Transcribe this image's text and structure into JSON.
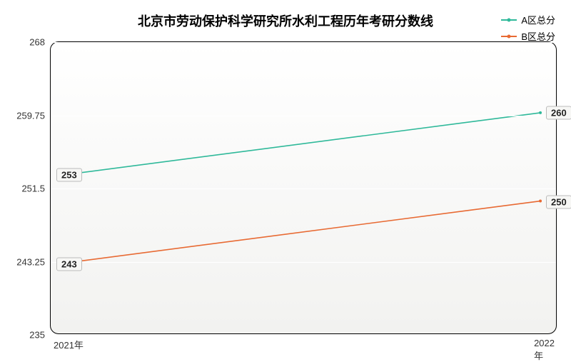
{
  "chart": {
    "type": "line",
    "title": "北京市劳动保护科学研究所水利工程历年考研分数线",
    "title_fontsize": 18,
    "title_weight": "bold",
    "background_gradient_top": "#ffffff",
    "background_gradient_bottom": "#f2f2f0",
    "plot_border_color": "#000000",
    "plot_border_radius": 12,
    "grid_color": "#ffffff",
    "xlim": [
      "2021年",
      "2022年"
    ],
    "x_ticks": [
      "2021年",
      "2022年"
    ],
    "ylim": [
      235,
      268
    ],
    "y_ticks": [
      235,
      243.25,
      251.5,
      259.75,
      268
    ],
    "y_tick_labels": [
      "235",
      "243.25",
      "251.5",
      "259.75",
      "268"
    ],
    "label_fontsize": 13,
    "series": [
      {
        "name": "A区总分",
        "color": "#2fb99a",
        "line_width": 1.6,
        "marker": "circle",
        "marker_size": 4,
        "x": [
          "2021年",
          "2022年"
        ],
        "y": [
          253,
          260
        ],
        "point_labels": [
          "253",
          "260"
        ]
      },
      {
        "name": "B区总分",
        "color": "#e86a33",
        "line_width": 1.6,
        "marker": "circle",
        "marker_size": 4,
        "x": [
          "2021年",
          "2022年"
        ],
        "y": [
          243,
          250
        ],
        "point_labels": [
          "243",
          "250"
        ]
      }
    ],
    "legend": {
      "position": "top-right",
      "fontsize": 13
    }
  }
}
